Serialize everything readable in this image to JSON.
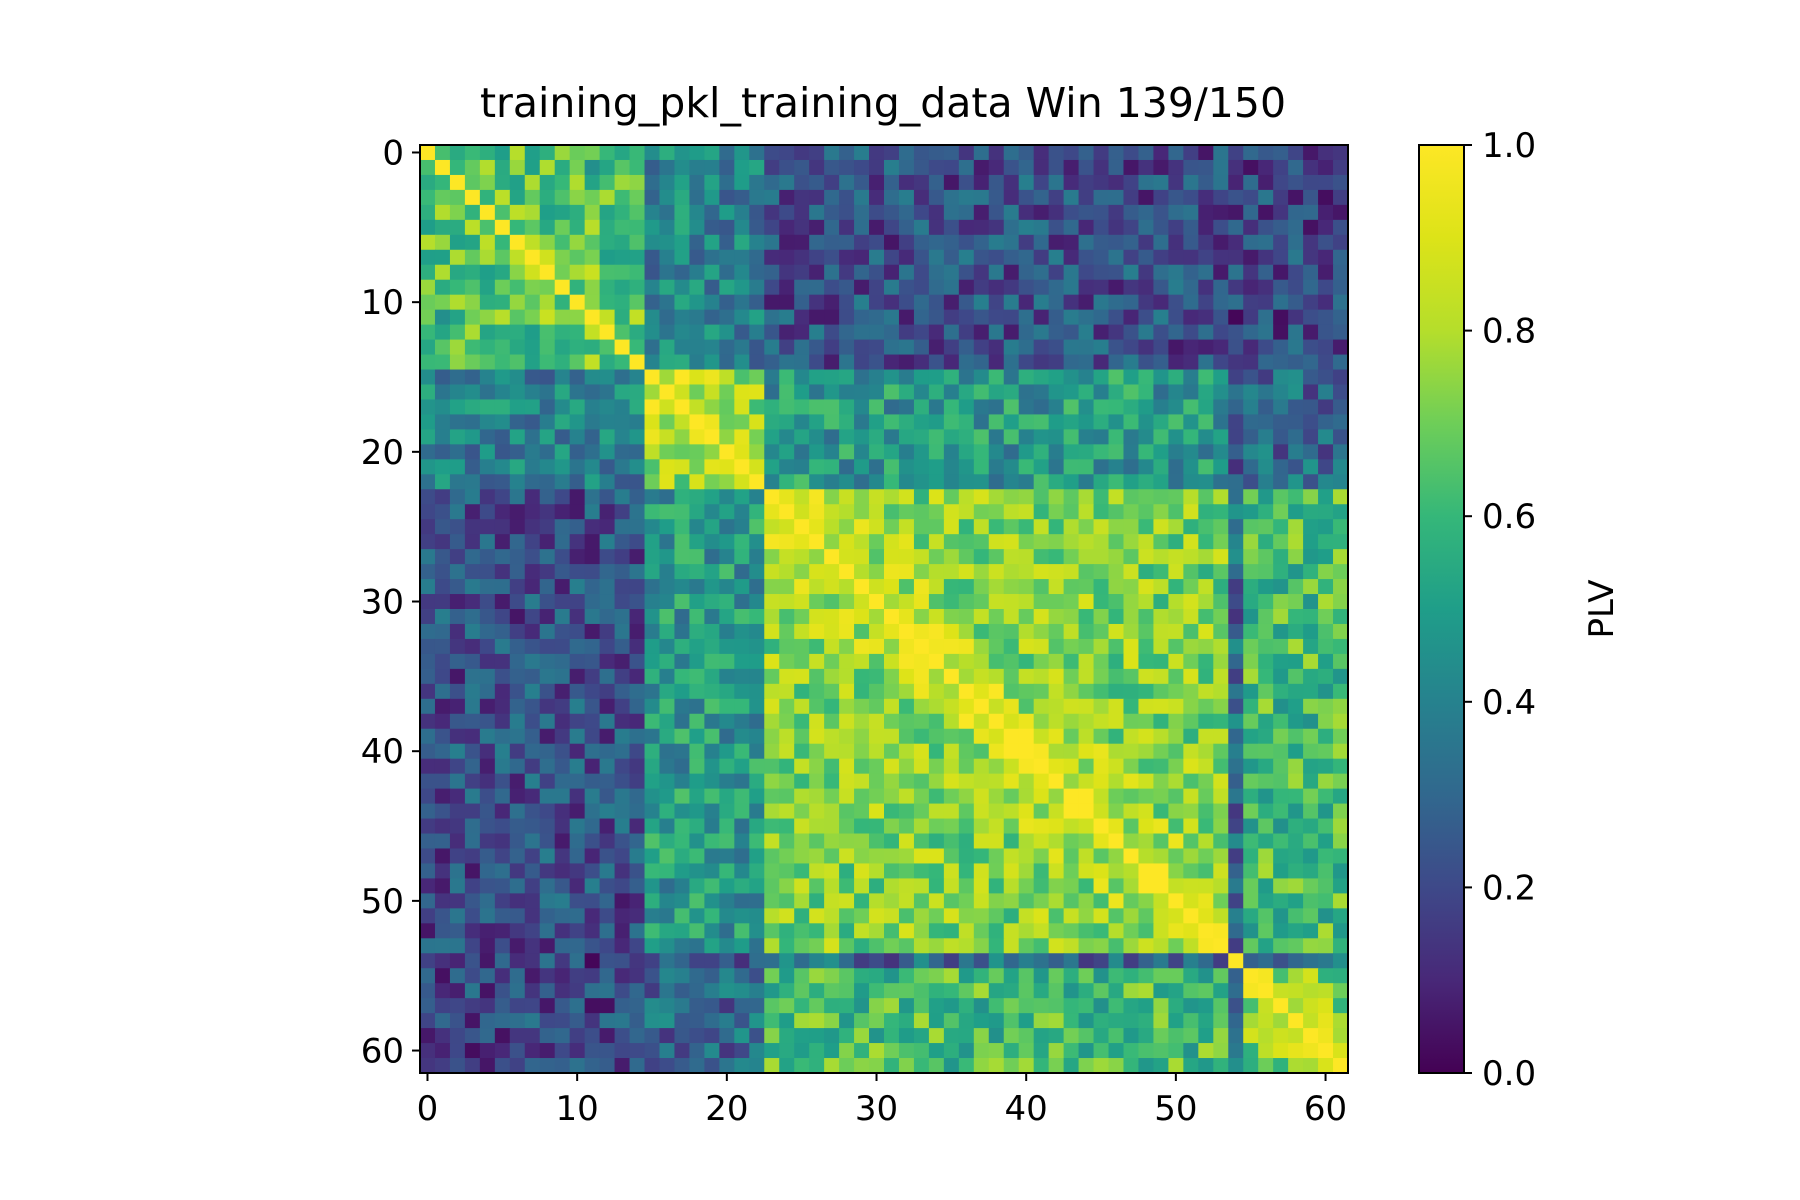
{
  "chart_data": {
    "type": "heatmap",
    "title": "training_pkl_training_data Win 139/150",
    "size": 62,
    "x_ticks": [
      "0",
      "10",
      "20",
      "30",
      "40",
      "50",
      "60"
    ],
    "y_ticks": [
      "0",
      "10",
      "20",
      "30",
      "40",
      "50",
      "60"
    ],
    "tick_values": [
      0,
      10,
      20,
      30,
      40,
      50,
      60
    ],
    "colorbar": {
      "label": "PLV",
      "range": [
        0.0,
        1.0
      ],
      "ticks": [
        "0.0",
        "0.2",
        "0.4",
        "0.6",
        "0.8",
        "1.0"
      ],
      "tick_values": [
        0.0,
        0.2,
        0.4,
        0.6,
        0.8,
        1.0
      ],
      "colormap": "viridis"
    },
    "groups": [
      {
        "channels": [
          0,
          14
        ],
        "block_mean": 0.6
      },
      {
        "channels": [
          15,
          22
        ],
        "block_mean": 0.72
      },
      {
        "channels": [
          23,
          53
        ],
        "block_mean": 0.72
      },
      {
        "channels": [
          54,
          54
        ],
        "block_mean": 1.0
      },
      {
        "channels": [
          55,
          61
        ],
        "block_mean": 0.68
      }
    ],
    "group_coupling": [
      [
        0.6,
        0.4,
        0.22,
        0.18,
        0.2
      ],
      [
        0.4,
        0.72,
        0.48,
        0.22,
        0.3
      ],
      [
        0.22,
        0.48,
        0.72,
        0.3,
        0.62
      ],
      [
        0.18,
        0.22,
        0.3,
        1.0,
        0.35
      ],
      [
        0.2,
        0.3,
        0.62,
        0.35,
        0.68
      ]
    ],
    "diagonal_value": 1.0
  }
}
